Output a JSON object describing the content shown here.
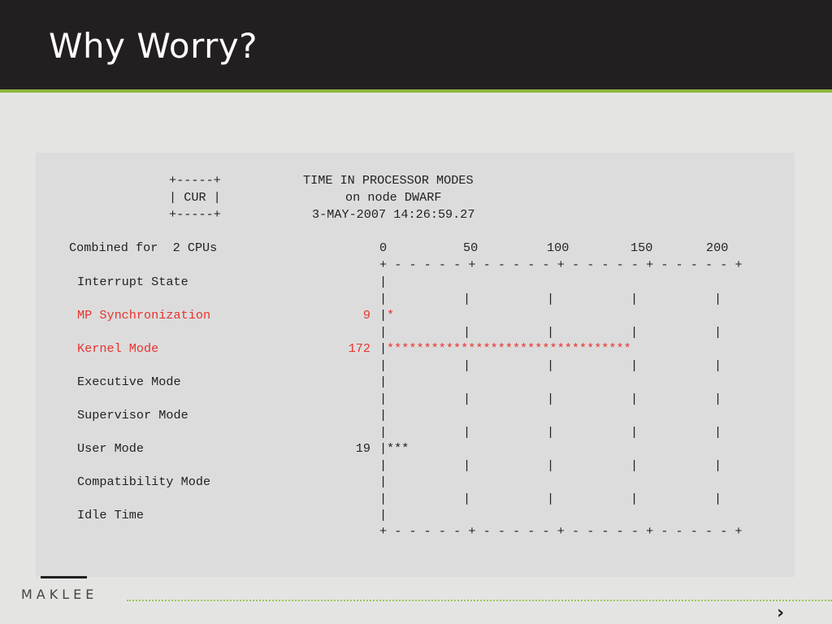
{
  "slide": {
    "title": "Why Worry?",
    "logo_text": "MAKLEE",
    "nav_next_icon": "chevron-right-icon"
  },
  "monitor": {
    "box_top": "+-----+",
    "box_label": "| CUR |",
    "box_bottom": "+-----+",
    "heading": "TIME IN PROCESSOR MODES",
    "node_line": "on node DWARF",
    "timestamp": "3-MAY-2007 14:26:59.27",
    "cpu_line": "Combined for  2 CPUs",
    "scale_labels": [
      "0",
      "50",
      "100",
      "150",
      "200"
    ],
    "axis_line": "+ - - - - - + - - - - - + - - - - - + - - - - - +",
    "rows": [
      {
        "label": "Interrupt State",
        "value": "",
        "bar": "",
        "highlight": false
      },
      {
        "label": "MP Synchronization",
        "value": "9",
        "bar": "*",
        "highlight": true
      },
      {
        "label": "Kernel Mode",
        "value": "172",
        "bar": "*********************************",
        "highlight": true
      },
      {
        "label": "Executive Mode",
        "value": "",
        "bar": "",
        "highlight": false
      },
      {
        "label": "Supervisor Mode",
        "value": "",
        "bar": "",
        "highlight": false
      },
      {
        "label": "User Mode",
        "value": "19",
        "bar": "***",
        "highlight": false
      },
      {
        "label": "Compatibility Mode",
        "value": "",
        "bar": "",
        "highlight": false
      },
      {
        "label": "Idle Time",
        "value": "",
        "bar": "",
        "highlight": false
      }
    ]
  },
  "colors": {
    "header_bg": "#231f20",
    "accent_green": "#8db73f",
    "highlight_red": "#e8322d"
  }
}
